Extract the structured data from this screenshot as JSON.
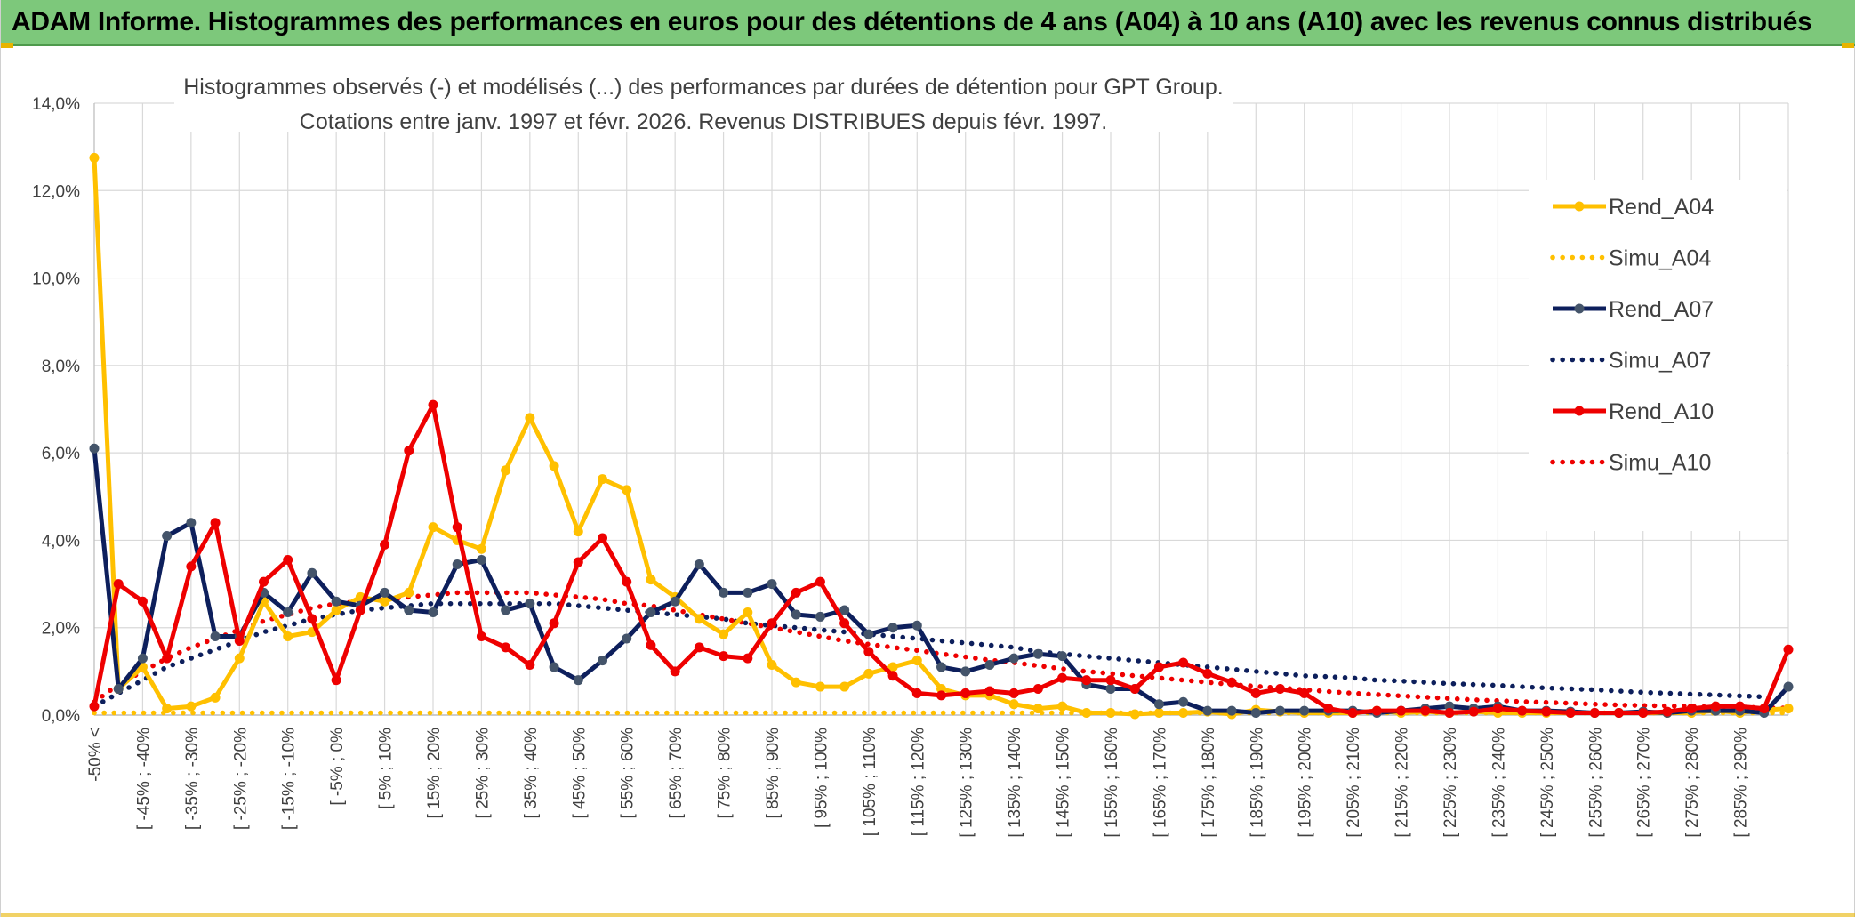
{
  "banner": {
    "title": "ADAM Informe. Histogrammes des performances en euros pour des détentions de 4 ans (A04) à 10 ans (A10) avec les revenus connus distribués"
  },
  "colors": {
    "banner_bg": "#7dc87b",
    "gold": "#ffc000",
    "navy": "#0d1f5c",
    "red": "#ee0000"
  },
  "chart_data": {
    "type": "line",
    "title_line1": "Histogrammes observés (-) et modélisés (...) des performances par durées de détention pour GPT Group.",
    "title_line2": "Cotations entre janv. 1997 et févr. 2026. Revenus DISTRIBUES depuis févr. 1997.",
    "xlabel": "",
    "ylabel": "",
    "ylim": [
      0,
      14
    ],
    "yticks": [
      "0,0%",
      "2,0%",
      "4,0%",
      "6,0%",
      "8,0%",
      "10,0%",
      "12,0%",
      "14,0%"
    ],
    "grid": true,
    "legend_position": "right",
    "x_tick_labels": [
      "-50% <",
      "[ -45% ; -40%",
      "[ -35% ; -30%",
      "[ -25% ; -20%",
      "[ -15% ; -10%",
      "[ -5% ; 0%",
      "[ 5% ; 10%",
      "[ 15% ; 20%",
      "[ 25% ; 30%",
      "[ 35% ; 40%",
      "[ 45% ; 50%",
      "[ 55% ; 60%",
      "[ 65% ; 70%",
      "[ 75% ; 80%",
      "[ 85% ; 90%",
      "[ 95% ; 100%",
      "[ 105% ; 110%",
      "[ 115% ; 120%",
      "[ 125% ; 130%",
      "[ 135% ; 140%",
      "[ 145% ; 150%",
      "[ 155% ; 160%",
      "[ 165% ; 170%",
      "[ 175% ; 180%",
      "[ 185% ; 190%",
      "[ 195% ; 200%",
      "[ 205% ; 210%",
      "[ 215% ; 220%",
      "[ 225% ; 230%",
      "[ 235% ; 240%",
      "[ 245% ; 250%",
      "[ 255% ; 260%",
      "[ 265% ; 270%",
      "[ 275% ; 280%",
      "[ 285% ; 290%"
    ],
    "series": [
      {
        "name": "Rend_A04",
        "style": "solid",
        "color": "#ffc000",
        "values": [
          12.75,
          0.6,
          1.1,
          0.15,
          0.2,
          0.4,
          1.3,
          2.6,
          1.8,
          1.9,
          2.4,
          2.7,
          2.6,
          2.8,
          4.3,
          4.0,
          3.8,
          5.6,
          6.8,
          5.7,
          4.2,
          5.4,
          5.15,
          3.1,
          2.7,
          2.2,
          1.85,
          2.35,
          1.15,
          0.75,
          0.65,
          0.65,
          0.95,
          1.1,
          1.25,
          0.6,
          0.45,
          0.45,
          0.25,
          0.15,
          0.2,
          0.05,
          0.05,
          0.02,
          0.05,
          0.05,
          0.08,
          0.02,
          0.12,
          0.08,
          0.05,
          0.05,
          0.05,
          0.1,
          0.05,
          0.08,
          0.05,
          0.08,
          0.05,
          0.05,
          0.05,
          0.05,
          0.05,
          0.05,
          0.05,
          0.05,
          0.05,
          0.1,
          0.05,
          0.12,
          0.15
        ]
      },
      {
        "name": "Simu_A04",
        "style": "dotted",
        "color": "#ffc000",
        "values": [
          0.05,
          0.05,
          0.05,
          0.05,
          0.05,
          0.05,
          0.05,
          0.05,
          0.05,
          0.05,
          0.05,
          0.05,
          0.05,
          0.05,
          0.05,
          0.05,
          0.05,
          0.05,
          0.05,
          0.05,
          0.05,
          0.05,
          0.05,
          0.05,
          0.05,
          0.05,
          0.05,
          0.05,
          0.05,
          0.05,
          0.05,
          0.05,
          0.05,
          0.05,
          0.05,
          0.05,
          0.05,
          0.05,
          0.05,
          0.05,
          0.05,
          0.05,
          0.05,
          0.05,
          0.05,
          0.05,
          0.05,
          0.05,
          0.05,
          0.05,
          0.05,
          0.05,
          0.05,
          0.05,
          0.05,
          0.05,
          0.05,
          0.05,
          0.05,
          0.05,
          0.05,
          0.05,
          0.05,
          0.05,
          0.05,
          0.05,
          0.05,
          0.05,
          0.05,
          0.05,
          0.05
        ]
      },
      {
        "name": "Rend_A07",
        "style": "solid",
        "color": "#0d1f5c",
        "values": [
          6.1,
          0.6,
          1.3,
          4.1,
          4.4,
          1.8,
          1.8,
          2.8,
          2.35,
          3.25,
          2.6,
          2.5,
          2.8,
          2.4,
          2.35,
          3.45,
          3.55,
          2.4,
          2.55,
          1.1,
          0.8,
          1.25,
          1.75,
          2.35,
          2.6,
          3.45,
          2.8,
          2.8,
          3.0,
          2.3,
          2.25,
          2.4,
          1.85,
          2.0,
          2.05,
          1.1,
          1.0,
          1.15,
          1.3,
          1.4,
          1.35,
          0.7,
          0.6,
          0.6,
          0.25,
          0.3,
          0.1,
          0.1,
          0.05,
          0.1,
          0.1,
          0.1,
          0.1,
          0.05,
          0.1,
          0.15,
          0.2,
          0.15,
          0.2,
          0.1,
          0.1,
          0.08,
          0.05,
          0.05,
          0.08,
          0.05,
          0.1,
          0.1,
          0.1,
          0.05,
          0.65
        ]
      },
      {
        "name": "Simu_A07",
        "style": "dotted",
        "color": "#0d1f5c",
        "values": [
          0.2,
          0.5,
          0.8,
          1.1,
          1.3,
          1.5,
          1.7,
          1.9,
          2.05,
          2.2,
          2.3,
          2.4,
          2.45,
          2.5,
          2.55,
          2.55,
          2.55,
          2.55,
          2.55,
          2.55,
          2.5,
          2.45,
          2.4,
          2.35,
          2.3,
          2.25,
          2.2,
          2.1,
          2.05,
          2.0,
          1.95,
          1.9,
          1.85,
          1.8,
          1.75,
          1.7,
          1.65,
          1.6,
          1.55,
          1.45,
          1.4,
          1.35,
          1.3,
          1.25,
          1.2,
          1.15,
          1.1,
          1.05,
          1.0,
          0.95,
          0.9,
          0.88,
          0.85,
          0.8,
          0.78,
          0.75,
          0.72,
          0.7,
          0.68,
          0.65,
          0.62,
          0.6,
          0.58,
          0.55,
          0.52,
          0.5,
          0.48,
          0.46,
          0.44,
          0.42,
          0.4
        ]
      },
      {
        "name": "Rend_A10",
        "style": "solid",
        "color": "#ee0000",
        "values": [
          0.2,
          3.0,
          2.6,
          1.3,
          3.4,
          4.4,
          1.7,
          3.05,
          3.55,
          2.2,
          0.8,
          2.4,
          3.9,
          6.05,
          7.1,
          4.3,
          1.8,
          1.55,
          1.15,
          2.1,
          3.5,
          4.05,
          3.05,
          1.6,
          1.0,
          1.55,
          1.35,
          1.3,
          2.1,
          2.8,
          3.05,
          2.1,
          1.45,
          0.9,
          0.5,
          0.45,
          0.5,
          0.55,
          0.5,
          0.6,
          0.85,
          0.8,
          0.8,
          0.6,
          1.1,
          1.2,
          0.95,
          0.75,
          0.5,
          0.6,
          0.5,
          0.15,
          0.05,
          0.1,
          0.1,
          0.1,
          0.05,
          0.08,
          0.15,
          0.1,
          0.08,
          0.05,
          0.05,
          0.05,
          0.05,
          0.08,
          0.15,
          0.2,
          0.2,
          0.15,
          1.5
        ]
      },
      {
        "name": "Simu_A10",
        "style": "dotted",
        "color": "#ee0000",
        "values": [
          0.3,
          0.7,
          1.0,
          1.3,
          1.55,
          1.75,
          1.95,
          2.15,
          2.3,
          2.45,
          2.55,
          2.6,
          2.65,
          2.7,
          2.75,
          2.8,
          2.8,
          2.8,
          2.8,
          2.75,
          2.7,
          2.65,
          2.55,
          2.5,
          2.4,
          2.3,
          2.2,
          2.1,
          2.0,
          1.9,
          1.8,
          1.7,
          1.62,
          1.55,
          1.48,
          1.4,
          1.33,
          1.26,
          1.2,
          1.13,
          1.06,
          1.0,
          0.95,
          0.9,
          0.85,
          0.8,
          0.75,
          0.7,
          0.66,
          0.62,
          0.58,
          0.54,
          0.5,
          0.47,
          0.44,
          0.41,
          0.38,
          0.35,
          0.33,
          0.31,
          0.29,
          0.27,
          0.25,
          0.23,
          0.22,
          0.21,
          0.2,
          0.19,
          0.18,
          0.17,
          0.16
        ]
      }
    ]
  }
}
